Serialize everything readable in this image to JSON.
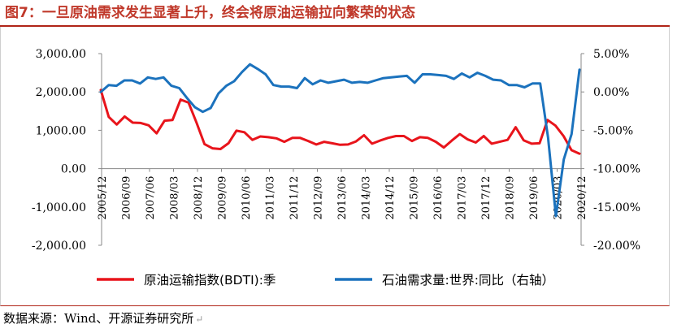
{
  "figure": {
    "title": "图7：一旦原油需求发生显著上升，终会将原油运输拉向繁荣的状态",
    "source": "数据来源：Wind、开源证券研究所"
  },
  "chart_data": {
    "type": "line",
    "title": "",
    "xlabel": "",
    "ylabel": "",
    "ylim": [
      -2000,
      3000
    ],
    "y2lim": [
      -20,
      5
    ],
    "left_ticks": [
      "3,000.00",
      "2,000.00",
      "1,000.00",
      "0.00",
      "-1,000.00",
      "-2,000.00"
    ],
    "right_ticks": [
      "5.00%",
      "0.00%",
      "-5.00%",
      "-10.00%",
      "-15.00%",
      "-20.00%"
    ],
    "x_ticks": [
      "2005/12",
      "2006/09",
      "2007/06",
      "2008/03",
      "2008/12",
      "2009/09",
      "2010/06",
      "2011/03",
      "2011/12",
      "2012/09",
      "2013/06",
      "2014/03",
      "2014/12",
      "2015/09",
      "2016/06",
      "2017/03",
      "2017/12",
      "2018/09",
      "2019/06",
      "2020/03",
      "2020/12"
    ],
    "grid": false,
    "legend_position": "bottom",
    "series": [
      {
        "name": "原油运输指数(BDTI):季",
        "axis": "left",
        "color": "#e8141b",
        "values": [
          2050,
          1350,
          1150,
          1360,
          1200,
          1190,
          1130,
          920,
          1250,
          1270,
          1800,
          1720,
          1200,
          640,
          530,
          510,
          660,
          990,
          950,
          750,
          840,
          820,
          790,
          700,
          800,
          800,
          720,
          630,
          700,
          660,
          620,
          630,
          710,
          870,
          650,
          730,
          800,
          850,
          850,
          720,
          820,
          800,
          700,
          550,
          730,
          900,
          760,
          680,
          850,
          650,
          700,
          750,
          1080,
          740,
          650,
          660,
          1270,
          1120,
          850,
          480,
          390
        ]
      },
      {
        "name": "石油需求量:世界:同比（右轴）",
        "axis": "right",
        "color": "#1b72bd",
        "values": [
          0.0,
          0.9,
          0.8,
          1.5,
          1.5,
          1.1,
          1.9,
          1.7,
          1.9,
          0.8,
          0.5,
          -0.8,
          -2.0,
          -2.6,
          -2.1,
          -0.2,
          0.8,
          1.4,
          2.6,
          3.6,
          3.0,
          2.3,
          0.9,
          0.7,
          0.7,
          0.5,
          1.8,
          1.0,
          1.5,
          1.2,
          1.4,
          1.6,
          1.2,
          1.3,
          1.2,
          1.5,
          1.8,
          1.9,
          2.0,
          2.1,
          1.2,
          2.3,
          2.3,
          2.2,
          2.1,
          1.7,
          2.4,
          1.9,
          2.5,
          2.1,
          1.6,
          1.5,
          0.9,
          0.9,
          0.6,
          1.1,
          1.1,
          -6.0,
          -16.2,
          -8.8,
          -5.5,
          2.9
        ]
      }
    ]
  }
}
